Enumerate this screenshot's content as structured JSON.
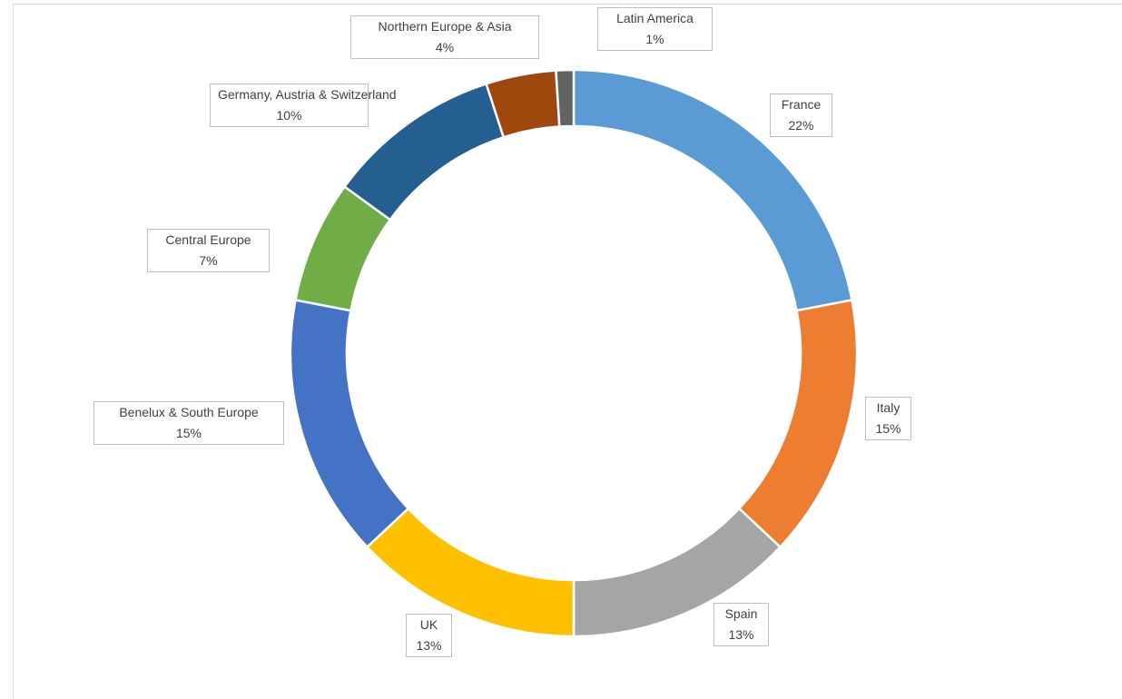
{
  "chart_data": {
    "type": "donut",
    "series": [
      {
        "values": [
          22,
          15,
          13,
          13,
          15,
          7,
          10,
          4,
          1
        ],
        "labels": [
          "22%",
          "15%",
          "13%",
          "13%",
          "15%",
          "7%",
          "10%",
          "4%",
          "1%"
        ]
      }
    ],
    "categories": [
      "France",
      "Italy",
      "Spain",
      "UK",
      "Benelux & South Europe",
      "Central Europe",
      "Germany, Austria & Switzerland",
      "Northern Europe & Asia",
      "Latin America"
    ],
    "colors": [
      "#5b9bd5",
      "#ed7d31",
      "#a5a5a5",
      "#ffc000",
      "#4472c4",
      "#70ad47",
      "#255e91",
      "#9e480e",
      "#636363"
    ],
    "legend": "none",
    "data_labels": "outside, category name and percentage"
  }
}
